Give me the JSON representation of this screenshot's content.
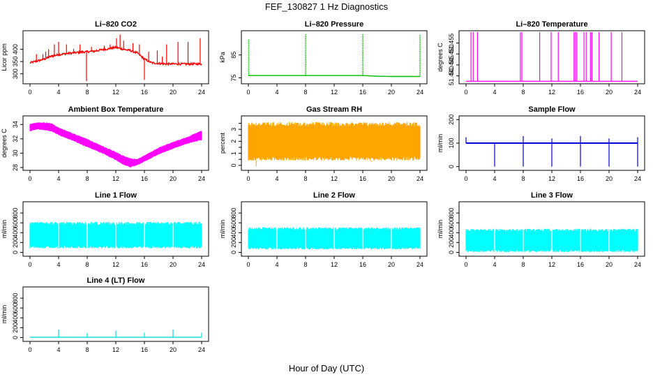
{
  "figure": {
    "title": "FEF_130827  1 Hz Diagnostics",
    "xlabel": "Hour of Day (UTC)"
  },
  "chart_data": [
    {
      "type": "line",
      "title": "Li–820 CO2",
      "ylabel": "Licor ppm",
      "color": "#ff0000",
      "xlim": [
        0,
        24
      ],
      "ylim": [
        265,
        470
      ],
      "yticks": [
        300,
        350,
        400
      ],
      "xticks": [
        0,
        4,
        8,
        12,
        16,
        20,
        24
      ],
      "series": [
        {
          "x": [
            0,
            1,
            2,
            3,
            4,
            5,
            6,
            7,
            8,
            9,
            10,
            11,
            12,
            13,
            14,
            15,
            16,
            17,
            18,
            19,
            20,
            21,
            22,
            23,
            24
          ],
          "y": [
            345,
            352,
            360,
            372,
            378,
            382,
            385,
            388,
            390,
            392,
            398,
            402,
            408,
            400,
            395,
            385,
            360,
            345,
            342,
            340,
            340,
            340,
            340,
            340,
            340
          ]
        }
      ],
      "spikes": [
        {
          "x": 0.9,
          "y": 380
        },
        {
          "x": 1.8,
          "y": 380
        },
        {
          "x": 2.6,
          "y": 400
        },
        {
          "x": 2.2,
          "y": 390
        },
        {
          "x": 3.4,
          "y": 420
        },
        {
          "x": 4.0,
          "y": 430
        },
        {
          "x": 5.1,
          "y": 420
        },
        {
          "x": 6.1,
          "y": 402
        },
        {
          "x": 7.0,
          "y": 420
        },
        {
          "x": 7.9,
          "y": 270
        },
        {
          "x": 8.6,
          "y": 410
        },
        {
          "x": 9.3,
          "y": 400
        },
        {
          "x": 10.4,
          "y": 415
        },
        {
          "x": 11.2,
          "y": 420
        },
        {
          "x": 12.1,
          "y": 445
        },
        {
          "x": 12.6,
          "y": 460
        },
        {
          "x": 13.1,
          "y": 435
        },
        {
          "x": 14.4,
          "y": 425
        },
        {
          "x": 15.3,
          "y": 420
        },
        {
          "x": 16.0,
          "y": 275
        },
        {
          "x": 16.6,
          "y": 390
        },
        {
          "x": 17.8,
          "y": 395
        },
        {
          "x": 18.5,
          "y": 370
        },
        {
          "x": 19.1,
          "y": 420
        },
        {
          "x": 20.7,
          "y": 430
        },
        {
          "x": 22.1,
          "y": 430
        },
        {
          "x": 23.8,
          "y": 445
        }
      ]
    },
    {
      "type": "line",
      "title": "Li–820 Pressure",
      "ylabel": "kPa",
      "color": "#00bb00",
      "xlim": [
        0,
        24
      ],
      "ylim": [
        73,
        95
      ],
      "yticks": [
        75,
        85
      ],
      "xticks": [
        0,
        4,
        8,
        12,
        16,
        20,
        24
      ],
      "series": [
        {
          "x": [
            0,
            4,
            8,
            12,
            16,
            18,
            20,
            24
          ],
          "y": [
            76,
            76,
            76,
            76,
            76,
            75.7,
            75.6,
            75.6
          ]
        }
      ],
      "spikes": [
        {
          "x": 0.05,
          "y": 92
        },
        {
          "x": 8.0,
          "y": 94
        },
        {
          "x": 16.0,
          "y": 94
        },
        {
          "x": 24.0,
          "y": 94
        }
      ]
    },
    {
      "type": "line",
      "title": "Li–820 Temperature",
      "ylabel": "degrees C",
      "color": "#ff00ff",
      "xlim": [
        0,
        24
      ],
      "ylim": [
        51.437,
        51.46
      ],
      "yticks": [
        51.44,
        51.445,
        51.45,
        51.455
      ],
      "ytick_labels": [
        "51.440",
        "51.445",
        "51.450",
        "51.455"
      ],
      "xticks": [
        0,
        4,
        8,
        12,
        16,
        20,
        24
      ],
      "series": [
        {
          "x": [
            0,
            24
          ],
          "y": [
            51.4375,
            51.4375
          ]
        }
      ],
      "spikes": [
        {
          "x": 0.7,
          "y": 51.46
        },
        {
          "x": 1.0,
          "y": 51.46
        },
        {
          "x": 1.6,
          "y": 51.46
        },
        {
          "x": 7.6,
          "y": 51.46
        },
        {
          "x": 7.8,
          "y": 51.46
        },
        {
          "x": 10.3,
          "y": 51.46
        },
        {
          "x": 11.9,
          "y": 51.46
        },
        {
          "x": 12.9,
          "y": 51.46
        },
        {
          "x": 15.1,
          "y": 51.46
        },
        {
          "x": 15.3,
          "y": 51.46
        },
        {
          "x": 15.5,
          "y": 51.46
        },
        {
          "x": 16.5,
          "y": 51.46
        },
        {
          "x": 16.8,
          "y": 51.46
        },
        {
          "x": 17.4,
          "y": 51.46
        },
        {
          "x": 17.6,
          "y": 51.46
        },
        {
          "x": 18.6,
          "y": 51.46
        },
        {
          "x": 20.3,
          "y": 51.46
        },
        {
          "x": 21.8,
          "y": 51.46
        }
      ]
    },
    {
      "type": "area",
      "title": "Ambient Box Temperature",
      "ylabel": "degrees C",
      "color": "#ff00ff",
      "xlim": [
        0,
        24
      ],
      "ylim": [
        27.8,
        35
      ],
      "yticks": [
        28,
        30,
        32,
        34
      ],
      "xticks": [
        0,
        4,
        8,
        12,
        16,
        20,
        24
      ],
      "series": [
        {
          "name": "max",
          "x": [
            0,
            1,
            2,
            3,
            4,
            6,
            8,
            10,
            12,
            13,
            14,
            15,
            16,
            18,
            20,
            22,
            24
          ],
          "y": [
            34.1,
            34.3,
            34.3,
            34.2,
            33.6,
            32.8,
            32.0,
            31.1,
            30.2,
            29.7,
            29.3,
            29.2,
            29.7,
            30.8,
            31.6,
            32.3,
            33.2
          ]
        },
        {
          "name": "min",
          "x": [
            0,
            1,
            2,
            3,
            4,
            6,
            8,
            10,
            12,
            13,
            14,
            15,
            16,
            18,
            20,
            22,
            24
          ],
          "y": [
            33.0,
            33.3,
            33.2,
            33.0,
            32.5,
            31.7,
            30.8,
            30.0,
            29.0,
            28.4,
            28.0,
            28.3,
            28.8,
            29.8,
            30.6,
            31.3,
            31.8
          ]
        }
      ]
    },
    {
      "type": "area",
      "title": "Gas Stream RH",
      "ylabel": "percent",
      "color": "#ffa500",
      "xlim": [
        0,
        24
      ],
      "ylim": [
        -0.3,
        4.0
      ],
      "yticks": [
        0.0,
        0.5,
        1.0,
        1.5,
        2.0,
        2.5,
        3.0,
        3.5
      ],
      "ytick_labels": [
        "0",
        "",
        "1",
        "",
        "2",
        "",
        "3",
        ""
      ],
      "xticks": [
        0,
        4,
        8,
        12,
        16,
        20,
        24
      ],
      "series": [
        {
          "name": "max",
          "x": [
            0,
            24
          ],
          "y": [
            3.6,
            3.6
          ]
        },
        {
          "name": "min",
          "x": [
            0,
            24
          ],
          "y": [
            0.4,
            0.4
          ]
        }
      ],
      "dips": [
        {
          "x": 1.1,
          "y": -0.1
        },
        {
          "x": 0.7,
          "y": 0.9
        },
        {
          "x": 3.1,
          "y": 1.2
        },
        {
          "x": 4.9,
          "y": 1.0
        },
        {
          "x": 8.4,
          "y": 0.9
        },
        {
          "x": 10.6,
          "y": 1.3
        },
        {
          "x": 12.9,
          "y": 1.1
        },
        {
          "x": 17.2,
          "y": 0.3
        },
        {
          "x": 20.7,
          "y": 0.8
        },
        {
          "x": 23.0,
          "y": 1.2
        }
      ]
    },
    {
      "type": "line",
      "title": "Sample Flow",
      "ylabel": "ml/min",
      "color": "#0000dd",
      "xlim": [
        0,
        24
      ],
      "ylim": [
        -10,
        210
      ],
      "yticks": [
        0,
        100,
        200
      ],
      "xticks": [
        0,
        4,
        8,
        12,
        16,
        20,
        24
      ],
      "series": [
        {
          "x": [
            0,
            24
          ],
          "y": [
            100,
            100
          ]
        }
      ],
      "spikes": [
        {
          "x": 0.0,
          "y": 125
        },
        {
          "x": 4.0,
          "y": 0
        },
        {
          "x": 8.0,
          "y": 0
        },
        {
          "x": 8.0,
          "y": 130
        },
        {
          "x": 12.0,
          "y": 0
        },
        {
          "x": 12.0,
          "y": 120
        },
        {
          "x": 16.0,
          "y": 0
        },
        {
          "x": 16.0,
          "y": 130
        },
        {
          "x": 20.0,
          "y": 0
        },
        {
          "x": 20.0,
          "y": 120
        },
        {
          "x": 24.0,
          "y": 0
        },
        {
          "x": 24.0,
          "y": 125
        }
      ]
    },
    {
      "type": "area",
      "title": "Line 1 Flow",
      "ylabel": "ml/min",
      "color": "#00ffff",
      "xlim": [
        0,
        24
      ],
      "ylim": [
        -50,
        1000
      ],
      "yticks": [
        0,
        200,
        400,
        600,
        800
      ],
      "xticks": [
        0,
        4,
        8,
        12,
        16,
        20,
        24
      ],
      "series": [
        {
          "name": "max",
          "x": [
            0,
            24
          ],
          "y": [
            620,
            620
          ]
        },
        {
          "name": "min",
          "x": [
            0,
            24
          ],
          "y": [
            80,
            80
          ]
        }
      ],
      "gaps": [
        4,
        8,
        12,
        16,
        20
      ]
    },
    {
      "type": "area",
      "title": "Line 2 Flow",
      "ylabel": "ml/min",
      "color": "#00ffff",
      "xlim": [
        0,
        24
      ],
      "ylim": [
        -50,
        1000
      ],
      "yticks": [
        0,
        200,
        400,
        600,
        800
      ],
      "xticks": [
        0,
        4,
        8,
        12,
        16,
        20,
        24
      ],
      "series": [
        {
          "name": "max",
          "x": [
            0,
            24
          ],
          "y": [
            510,
            510
          ]
        },
        {
          "name": "min",
          "x": [
            0,
            24
          ],
          "y": [
            60,
            60
          ]
        }
      ],
      "gaps": [
        4,
        8,
        12,
        16,
        20
      ]
    },
    {
      "type": "area",
      "title": "Line 3 Flow",
      "ylabel": "ml/min",
      "color": "#00ffff",
      "xlim": [
        0,
        24
      ],
      "ylim": [
        -50,
        1000
      ],
      "yticks": [
        0,
        200,
        400,
        600,
        800
      ],
      "xticks": [
        0,
        4,
        8,
        12,
        16,
        20,
        24
      ],
      "series": [
        {
          "name": "max",
          "x": [
            0,
            24
          ],
          "y": [
            480,
            480
          ]
        },
        {
          "name": "min",
          "x": [
            0,
            24
          ],
          "y": [
            5,
            5
          ]
        }
      ],
      "gaps": [
        4,
        8,
        12,
        16,
        20
      ]
    },
    {
      "type": "line",
      "title": "Line 4 (LT) Flow",
      "ylabel": "ml/min",
      "color": "#00dddd",
      "xlim": [
        0,
        24
      ],
      "ylim": [
        -50,
        1000
      ],
      "yticks": [
        0,
        200,
        400,
        600,
        800
      ],
      "xticks": [
        0,
        4,
        8,
        12,
        16,
        20,
        24
      ],
      "series": [
        {
          "x": [
            0,
            24
          ],
          "y": [
            5,
            5
          ]
        }
      ],
      "spikes": [
        {
          "x": 4,
          "y": 160
        },
        {
          "x": 8,
          "y": 95
        },
        {
          "x": 12,
          "y": 140
        },
        {
          "x": 16,
          "y": 100
        },
        {
          "x": 20,
          "y": 155
        },
        {
          "x": 24,
          "y": 100
        }
      ]
    }
  ]
}
